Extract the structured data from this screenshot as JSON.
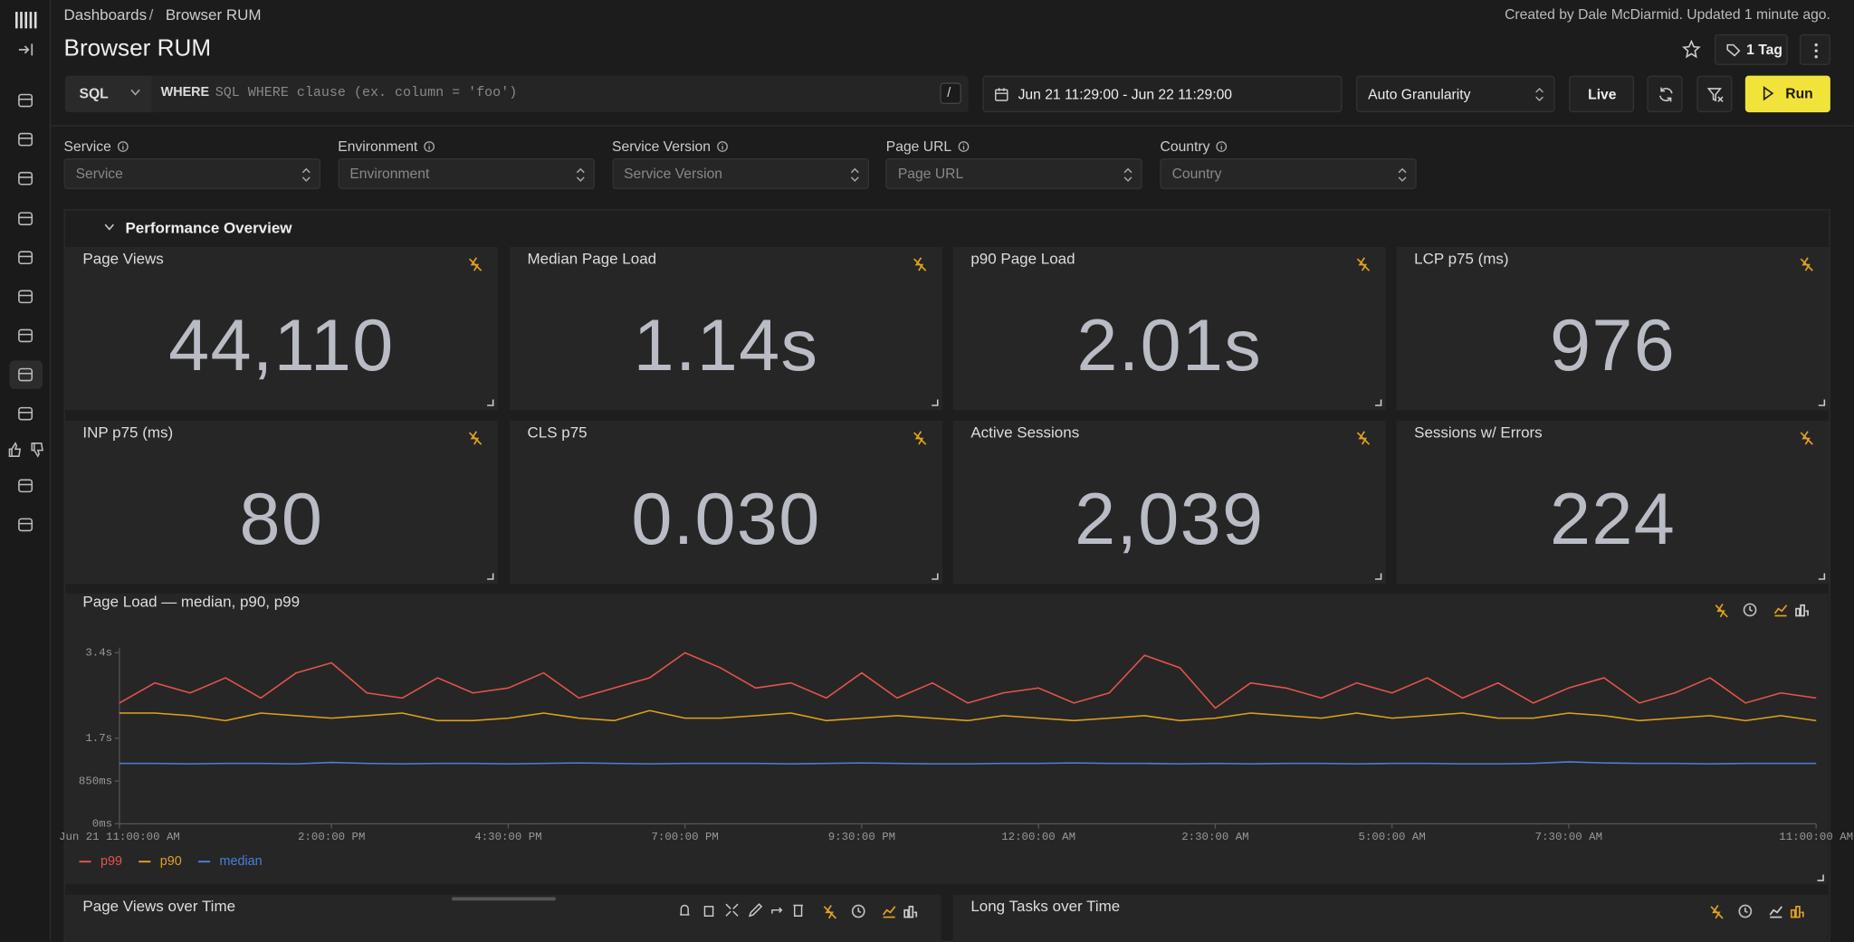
{
  "breadcrumb": {
    "root": "Dashboards",
    "separator": "/",
    "current": "Browser RUM"
  },
  "header": {
    "title": "Browser RUM",
    "meta": "Created by Dale McDiarmid. Updated 1 minute ago.",
    "tags": "1 Tag"
  },
  "query": {
    "language": "SQL",
    "where": "WHERE",
    "placeholder": "SQL WHERE clause (ex. column = 'foo')",
    "shortcut": "/",
    "time_range": "Jun 21 11:29:00 - Jun 22 11:29:00",
    "granularity": "Auto Granularity",
    "live": "Live",
    "run": "Run"
  },
  "filters": [
    {
      "label": "Service",
      "placeholder": "Service"
    },
    {
      "label": "Environment",
      "placeholder": "Environment"
    },
    {
      "label": "Service Version",
      "placeholder": "Service Version"
    },
    {
      "label": "Page URL",
      "placeholder": "Page URL"
    },
    {
      "label": "Country",
      "placeholder": "Country"
    }
  ],
  "section": "Performance Overview",
  "tiles": [
    {
      "title": "Page Views",
      "value": "44,110"
    },
    {
      "title": "Median Page Load",
      "value": "1.14s"
    },
    {
      "title": "p90 Page Load",
      "value": "2.01s"
    },
    {
      "title": "LCP p75 (ms)",
      "value": "976"
    },
    {
      "title": "INP p75 (ms)",
      "value": "80"
    },
    {
      "title": "CLS p75",
      "value": "0.030"
    },
    {
      "title": "Active Sessions",
      "value": "2,039"
    },
    {
      "title": "Sessions w/ Errors",
      "value": "224"
    }
  ],
  "chart": {
    "type": "line",
    "title": "Page Load — median, p90, p99",
    "x": [
      0,
      0.5,
      1,
      1.5,
      2,
      2.5,
      3,
      3.5,
      4,
      4.5,
      5,
      5.5,
      6,
      6.5,
      7,
      7.5,
      8,
      8.5,
      9,
      9.5,
      10,
      10.5,
      11,
      11.5,
      12,
      12.5,
      13,
      13.5,
      14,
      14.5,
      15,
      15.5,
      16,
      16.5,
      17,
      17.5,
      18,
      18.5,
      19,
      19.5,
      20,
      20.5,
      21,
      21.5,
      22,
      22.5,
      23,
      23.5,
      24
    ],
    "series": [
      {
        "name": "p99",
        "color": "#e5534b",
        "values": [
          2400,
          2800,
          2600,
          2900,
          2500,
          3000,
          3200,
          2600,
          2500,
          2900,
          2600,
          2700,
          3000,
          2500,
          2700,
          2900,
          3400,
          3100,
          2700,
          2800,
          2500,
          3000,
          2500,
          2800,
          2400,
          2600,
          2700,
          2400,
          2600,
          3350,
          3100,
          2300,
          2800,
          2700,
          2500,
          2800,
          2600,
          2900,
          2500,
          2800,
          2400,
          2700,
          2900,
          2400,
          2600,
          2900,
          2400,
          2600,
          2500
        ]
      },
      {
        "name": "p90",
        "color": "#e0a020",
        "values": [
          2200,
          2200,
          2150,
          2050,
          2200,
          2150,
          2100,
          2150,
          2200,
          2050,
          2050,
          2100,
          2200,
          2100,
          2050,
          2250,
          2100,
          2100,
          2150,
          2200,
          2050,
          2100,
          2150,
          2100,
          2050,
          2150,
          2100,
          2050,
          2100,
          2150,
          2050,
          2100,
          2200,
          2150,
          2100,
          2200,
          2100,
          2150,
          2200,
          2100,
          2100,
          2200,
          2150,
          2050,
          2100,
          2150,
          2050,
          2150,
          2050
        ]
      },
      {
        "name": "median",
        "color": "#4a7fd8",
        "values": [
          1200,
          1200,
          1190,
          1200,
          1200,
          1190,
          1220,
          1200,
          1190,
          1200,
          1200,
          1190,
          1200,
          1210,
          1200,
          1190,
          1200,
          1200,
          1200,
          1190,
          1200,
          1210,
          1200,
          1190,
          1190,
          1200,
          1200,
          1210,
          1200,
          1200,
          1190,
          1200,
          1190,
          1200,
          1200,
          1190,
          1200,
          1200,
          1190,
          1190,
          1200,
          1230,
          1210,
          1200,
          1200,
          1190,
          1200,
          1200,
          1200
        ]
      }
    ],
    "xlim": [
      0,
      24
    ],
    "xticks": [
      {
        "value": 0,
        "label": "Jun 21 11:00:00 AM"
      },
      {
        "value": 3,
        "label": "2:00:00 PM"
      },
      {
        "value": 5.5,
        "label": "4:30:00 PM"
      },
      {
        "value": 8,
        "label": "7:00:00 PM"
      },
      {
        "value": 10.5,
        "label": "9:30:00 PM"
      },
      {
        "value": 13,
        "label": "12:00:00 AM"
      },
      {
        "value": 15.5,
        "label": "2:30:00 AM"
      },
      {
        "value": 18,
        "label": "5:00:00 AM"
      },
      {
        "value": 20.5,
        "label": "7:30:00 AM"
      },
      {
        "value": 24,
        "label": "11:00:00 AM"
      }
    ],
    "ylim": [
      0,
      3500
    ],
    "yticks": [
      {
        "value": 0,
        "label": "0ms"
      },
      {
        "value": 850,
        "label": "850ms"
      },
      {
        "value": 1700,
        "label": "1.7s"
      },
      {
        "value": 3400,
        "label": "3.4s"
      }
    ]
  },
  "bottom_tiles": [
    "Page Views over Time",
    "Long Tasks over Time"
  ]
}
